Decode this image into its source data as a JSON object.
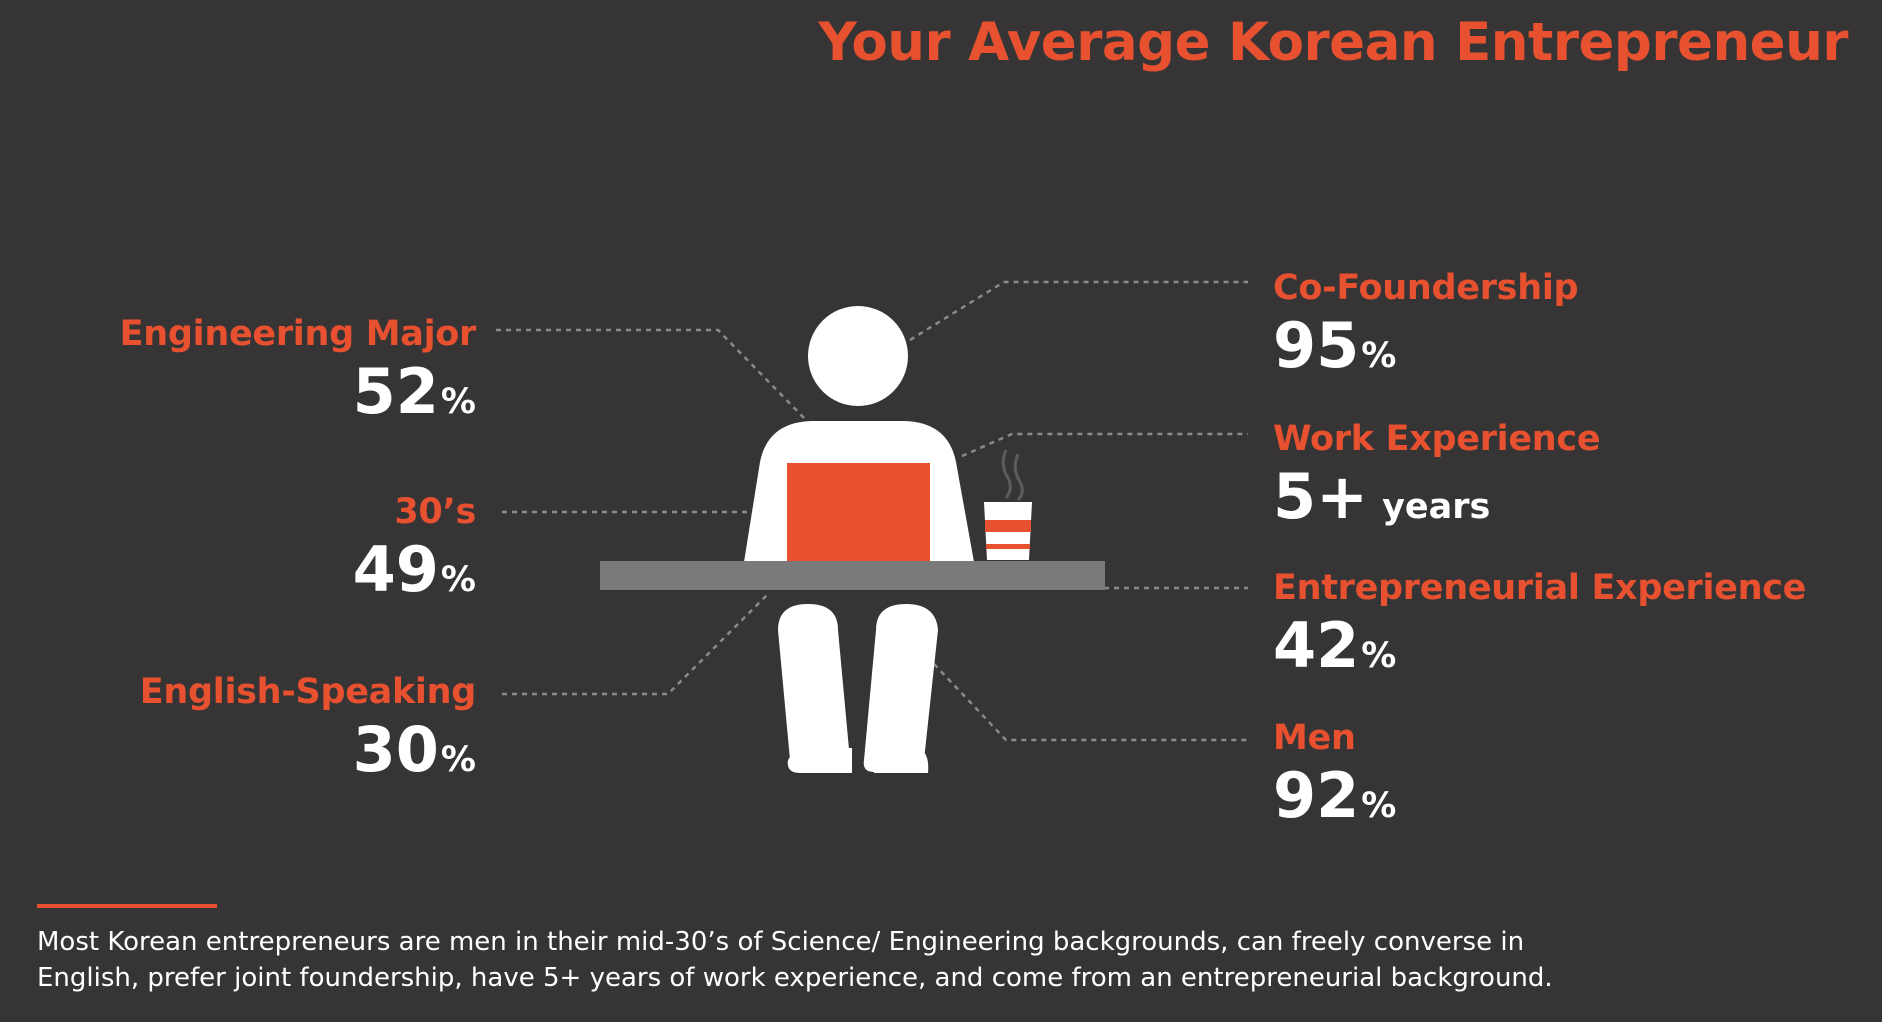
{
  "title": "Your Average Korean Entrepreneur",
  "left_stats": [
    {
      "label": "Engineering Major",
      "number": "52",
      "unit": "%"
    },
    {
      "label": "30’s",
      "number": "49",
      "unit": "%"
    },
    {
      "label": "English-Speaking",
      "number": "30",
      "unit": "%"
    }
  ],
  "right_stats": [
    {
      "label": "Co-Foundership",
      "number": "95",
      "unit": "%"
    },
    {
      "label": "Work Experience",
      "number": "5+",
      "unit": "years"
    },
    {
      "label": "Entrepreneurial Experience",
      "number": "42",
      "unit": "%"
    },
    {
      "label": "Men",
      "number": "92",
      "unit": "%"
    }
  ],
  "footer": {
    "text": "Most Korean entrepreneurs are men in their mid-30’s of Science/ Engineering backgrounds, can freely converse in English, prefer joint foundership, have 5+ years of work experience, and come from an entrepreneurial background."
  },
  "colors": {
    "background": "#373435",
    "accent": "#e8512f",
    "figure": "#ffffff",
    "desk": "#7a7a7a",
    "leader_lines": "#8a8a8a"
  },
  "icons": [
    "person-icon",
    "laptop-icon",
    "coffee-cup-icon",
    "desk-icon"
  ]
}
